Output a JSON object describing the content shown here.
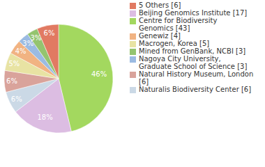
{
  "chart_data": {
    "type": "pie",
    "categories": [
      "Centre for Biodiversity Genomics [43]",
      "Beijing Genomics Institute [17]",
      "Naturalis Biodiversity Center [6]",
      "Natural History Museum, London [6]",
      "Macrogen, Korea [5]",
      "Genewiz [4]",
      "Nagoya City University, Graduate School of Science [3]",
      "Mined from GenBank, NCBI [3]",
      "5 Others [6]"
    ],
    "values": [
      43,
      17,
      6,
      6,
      5,
      4,
      3,
      3,
      6
    ],
    "slice_labels": [
      "46%",
      "18%",
      "6%",
      "6%",
      "5%",
      "4%",
      "3%",
      "3%",
      "6%"
    ],
    "colors": [
      "#a3d85f",
      "#dcbde2",
      "#cbd9e6",
      "#d9a39b",
      "#e8e3a3",
      "#f1b382",
      "#9bbbe2",
      "#94c46f",
      "#e17a62"
    ],
    "legend": "right"
  }
}
